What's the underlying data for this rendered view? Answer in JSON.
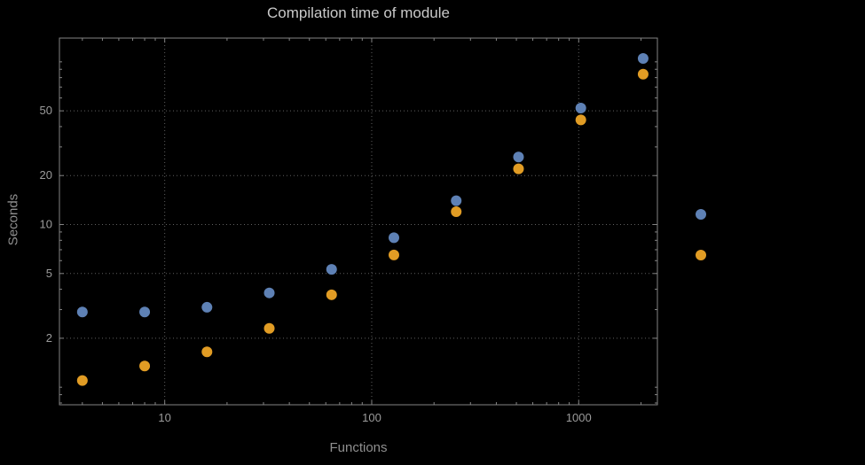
{
  "title": "Compilation time of module",
  "colors": {
    "background": "#000000",
    "frame": "#848484",
    "grid": "#5f5f5f",
    "title_text": "#c9c9c9",
    "axis_text": "#8f8f8f",
    "tick_text": "#9c9c9c"
  },
  "chart_data": {
    "type": "scatter",
    "title": "Compilation time of module",
    "xlabel": "Functions",
    "ylabel": "Seconds",
    "x_scale": "log",
    "y_scale": "log",
    "grid": "dotted",
    "legend_position": "right-outside",
    "legend_labels_visible": false,
    "x_ticks": [
      10,
      100,
      1000
    ],
    "y_ticks": [
      2,
      5,
      10,
      20,
      50
    ],
    "xlim": [
      3.1,
      2400
    ],
    "ylim": [
      0.78,
      140
    ],
    "x": [
      4,
      8,
      16,
      32,
      64,
      128,
      256,
      512,
      1024,
      2048
    ],
    "series": [
      {
        "name": "series-1",
        "label": "",
        "color": "#5E81B5",
        "values": [
          2.9,
          2.9,
          3.1,
          3.8,
          5.3,
          8.3,
          14,
          26,
          52,
          105
        ]
      },
      {
        "name": "series-2",
        "label": "",
        "color": "#E19C24",
        "values": [
          1.1,
          1.35,
          1.65,
          2.3,
          3.7,
          6.5,
          12,
          22,
          44,
          84
        ]
      }
    ]
  }
}
